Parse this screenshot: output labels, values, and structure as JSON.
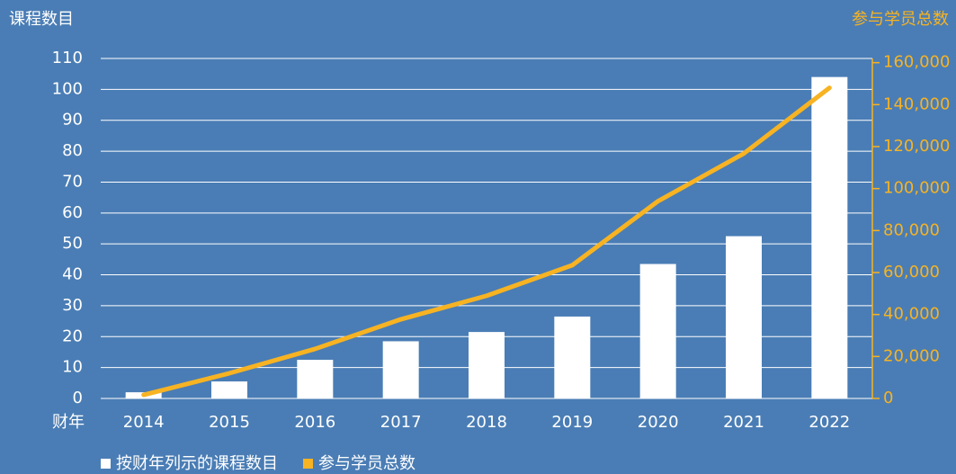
{
  "chart_data": {
    "type": "combo",
    "y_label": "课程数目",
    "y2_label": "参与学员总数",
    "x_label": "财年",
    "categories": [
      "2014",
      "2015",
      "2016",
      "2017",
      "2018",
      "2019",
      "2020",
      "2021",
      "2022"
    ],
    "series": [
      {
        "name": "按财年列示的课程数目",
        "type": "bar",
        "color": "#ffffff",
        "values": [
          2,
          5.5,
          12.5,
          18.5,
          21.5,
          26.5,
          43.5,
          52.5,
          104
        ]
      },
      {
        "name": "参与学员总数",
        "type": "line",
        "axis": "y2",
        "color": "#f7b322",
        "values": [
          1700,
          12000,
          23600,
          37700,
          48900,
          63500,
          94000,
          116700,
          148000
        ]
      }
    ],
    "ylim": [
      0,
      110
    ],
    "yticks": [
      0,
      10,
      20,
      30,
      40,
      50,
      60,
      70,
      80,
      90,
      100,
      110
    ],
    "y2lim": [
      0,
      162000
    ],
    "y2ticks": [
      0,
      {
        "value": 20000,
        "label": "20,000"
      },
      {
        "value": 40000,
        "label": "40,000"
      },
      {
        "value": 60000,
        "label": "60,000"
      },
      {
        "value": 80000,
        "label": "80,000"
      },
      {
        "value": 100000,
        "label": "100,000"
      },
      {
        "value": 120000,
        "label": "120,000"
      },
      {
        "value": 140000,
        "label": "140,000"
      },
      {
        "value": 160000,
        "label": "160,000"
      }
    ],
    "grid": true,
    "legend": "bottom"
  }
}
